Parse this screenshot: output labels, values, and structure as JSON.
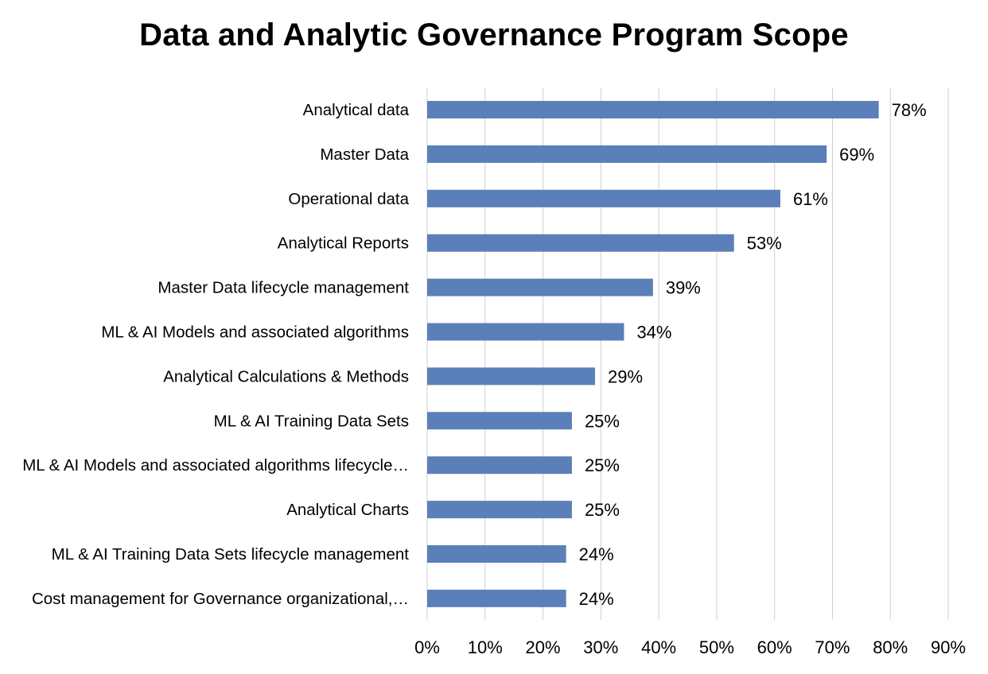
{
  "chart_data": {
    "type": "bar",
    "orientation": "horizontal",
    "title": "Data and Analytic Governance Program Scope",
    "categories": [
      "Analytical data",
      "Master Data",
      "Operational data",
      "Analytical Reports",
      "Master Data lifecycle management",
      "ML & AI Models and associated algorithms",
      "Analytical Calculations & Methods",
      "ML & AI Training Data Sets",
      "ML & AI Models and associated algorithms lifecycle…",
      "Analytical Charts",
      "ML & AI Training Data Sets lifecycle management",
      "Cost management for Governance organizational,…"
    ],
    "values": [
      78,
      69,
      61,
      53,
      39,
      34,
      29,
      25,
      25,
      25,
      24,
      24
    ],
    "data_labels": [
      "78%",
      "69%",
      "61%",
      "53%",
      "39%",
      "34%",
      "29%",
      "25%",
      "25%",
      "25%",
      "24%",
      "24%"
    ],
    "xlim": [
      0,
      90
    ],
    "xticks": [
      "0%",
      "10%",
      "20%",
      "30%",
      "40%",
      "50%",
      "60%",
      "70%",
      "80%",
      "90%"
    ],
    "grid": true,
    "bar_color": "#5B7FB8",
    "gridline_color": "#d0d0d0"
  }
}
